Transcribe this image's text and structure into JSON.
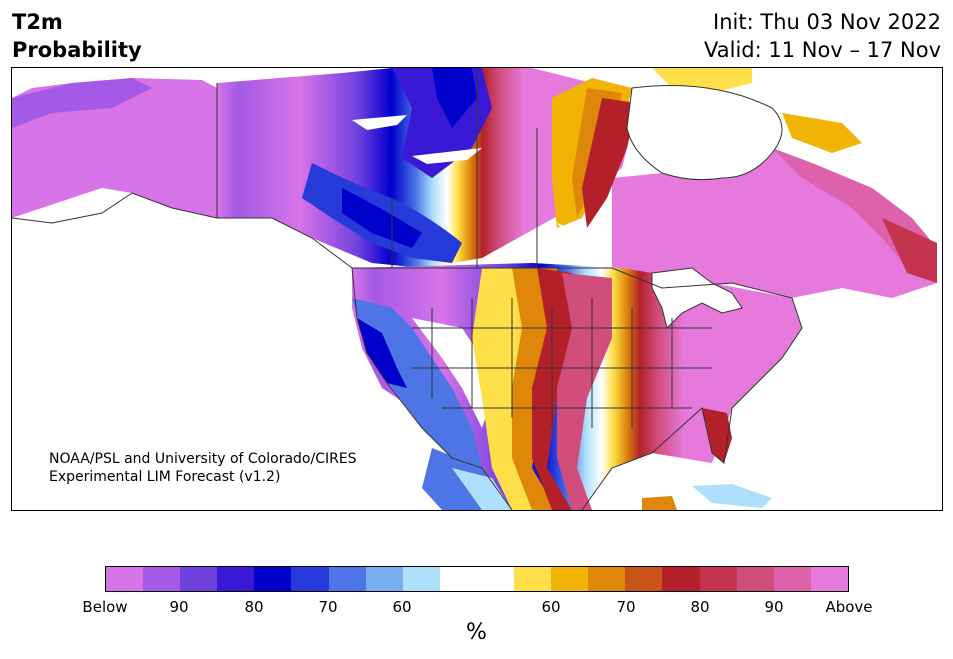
{
  "header": {
    "title_line1": "T2m",
    "title_line2": "Probability",
    "init": "Init: Thu 03 Nov 2022",
    "valid": "Valid: 11 Nov – 17 Nov"
  },
  "credit": {
    "line1": "NOAA/PSL and University of Colorado/CIRES",
    "line2": "Experimental LIM Forecast (v1.2)"
  },
  "colorbar": {
    "colors": [
      "#d774e8",
      "#a45ae6",
      "#7040df",
      "#3a19d6",
      "#0000cc",
      "#2639d9",
      "#4d75e6",
      "#77aef0",
      "#aee0fb",
      "#ffffff",
      "#ffffff",
      "#ffe04a",
      "#f1b404",
      "#de8709",
      "#c8541a",
      "#b3202a",
      "#c4344e",
      "#d14d7c",
      "#dc63ab",
      "#e67adc"
    ],
    "ticks": [
      "Below",
      "90",
      "80",
      "70",
      "60",
      "60",
      "70",
      "80",
      "90",
      "Above"
    ],
    "unit": "%"
  }
}
